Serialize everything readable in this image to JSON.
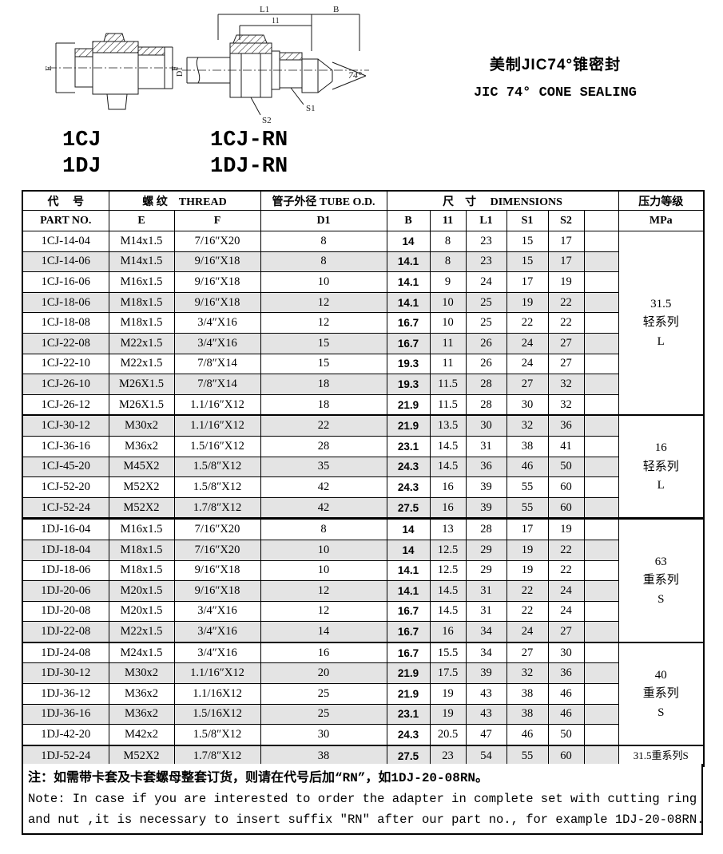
{
  "header": {
    "title_cn": "美制JIC74°锥密封",
    "title_en": "JIC 74° CONE SEALING",
    "models": {
      "m1": "1CJ",
      "m1rn": "1CJ-RN",
      "m2": "1DJ",
      "m2rn": "1DJ-RN"
    }
  },
  "drawings": {
    "left_labels": {
      "e": "E",
      "f": "F"
    },
    "right_labels": {
      "l1_cap": "L1",
      "b": "B",
      "l1_small": "11",
      "d1": "D1",
      "s2": "S2",
      "s1": "S1",
      "angle": "74°"
    }
  },
  "table": {
    "header_row1": {
      "part": "代　 号",
      "thread": "螺 纹　THREAD",
      "tube": "管子外径 TUBE O.D.",
      "dims": "尺　寸　 DIMENSIONS",
      "pressure": "压力等级"
    },
    "header_row2": {
      "part": "PART  NO.",
      "e": "E",
      "f": "F",
      "d1": "D1",
      "b": "B",
      "l1s": "11",
      "l1": "L1",
      "s1": "S1",
      "s2": "S2",
      "empty": "",
      "mpa": "MPa"
    },
    "rows": [
      [
        "1CJ-14-04",
        "M14x1.5",
        "7/16″X20",
        "8",
        "14",
        "8",
        "23",
        "15",
        "17"
      ],
      [
        "1CJ-14-06",
        "M14x1.5",
        "9/16″X18",
        "8",
        "14.1",
        "8",
        "23",
        "15",
        "17"
      ],
      [
        "1CJ-16-06",
        "M16x1.5",
        "9/16″X18",
        "10",
        "14.1",
        "9",
        "24",
        "17",
        "19"
      ],
      [
        "1CJ-18-06",
        "M18x1.5",
        "9/16″X18",
        "12",
        "14.1",
        "10",
        "25",
        "19",
        "22"
      ],
      [
        "1CJ-18-08",
        "M18x1.5",
        "3/4″X16",
        "12",
        "16.7",
        "10",
        "25",
        "22",
        "22"
      ],
      [
        "1CJ-22-08",
        "M22x1.5",
        "3/4″X16",
        "15",
        "16.7",
        "11",
        "26",
        "24",
        "27"
      ],
      [
        "1CJ-22-10",
        "M22x1.5",
        "7/8″X14",
        "15",
        "19.3",
        "11",
        "26",
        "24",
        "27"
      ],
      [
        "1CJ-26-10",
        "M26X1.5",
        "7/8″X14",
        "18",
        "19.3",
        "11.5",
        "28",
        "27",
        "32"
      ],
      [
        "1CJ-26-12",
        "M26X1.5",
        "1.1/16″X12",
        "18",
        "21.9",
        "11.5",
        "28",
        "30",
        "32"
      ],
      [
        "1CJ-30-12",
        "M30x2",
        "1.1/16″X12",
        "22",
        "21.9",
        "13.5",
        "30",
        "32",
        "36"
      ],
      [
        "1CJ-36-16",
        "M36x2",
        "1.5/16″X12",
        "28",
        "23.1",
        "14.5",
        "31",
        "38",
        "41"
      ],
      [
        "1CJ-45-20",
        "M45X2",
        "1.5/8″X12",
        "35",
        "24.3",
        "14.5",
        "36",
        "46",
        "50"
      ],
      [
        "1CJ-52-20",
        "M52X2",
        "1.5/8″X12",
        "42",
        "24.3",
        "16",
        "39",
        "55",
        "60"
      ],
      [
        "1CJ-52-24",
        "M52X2",
        "1.7/8″X12",
        "42",
        "27.5",
        "16",
        "39",
        "55",
        "60"
      ],
      [
        "1DJ-16-04",
        "M16x1.5",
        "7/16″X20",
        "8",
        "14",
        "13",
        "28",
        "17",
        "19"
      ],
      [
        "1DJ-18-04",
        "M18x1.5",
        "7/16″X20",
        "10",
        "14",
        "12.5",
        "29",
        "19",
        "22"
      ],
      [
        "1DJ-18-06",
        "M18x1.5",
        "9/16″X18",
        "10",
        "14.1",
        "12.5",
        "29",
        "19",
        "22"
      ],
      [
        "1DJ-20-06",
        "M20x1.5",
        "9/16″X18",
        "12",
        "14.1",
        "14.5",
        "31",
        "22",
        "24"
      ],
      [
        "1DJ-20-08",
        "M20x1.5",
        "3/4″X16",
        "12",
        "16.7",
        "14.5",
        "31",
        "22",
        "24"
      ],
      [
        "1DJ-22-08",
        "M22x1.5",
        "3/4″X16",
        "14",
        "16.7",
        "16",
        "34",
        "24",
        "27"
      ],
      [
        "1DJ-24-08",
        "M24x1.5",
        "3/4″X16",
        "16",
        "16.7",
        "15.5",
        "34",
        "27",
        "30"
      ],
      [
        "1DJ-30-12",
        "M30x2",
        "1.1/16″X12",
        "20",
        "21.9",
        "17.5",
        "39",
        "32",
        "36"
      ],
      [
        "1DJ-36-12",
        "M36x2",
        "1.1/16X12",
        "25",
        "21.9",
        "19",
        "43",
        "38",
        "46"
      ],
      [
        "1DJ-36-16",
        "M36x2",
        "1.5/16X12",
        "25",
        "23.1",
        "19",
        "43",
        "38",
        "46"
      ],
      [
        "1DJ-42-20",
        "M42x2",
        "1.5/8″X12",
        "30",
        "24.3",
        "20.5",
        "47",
        "46",
        "50"
      ],
      [
        "1DJ-52-24",
        "M52X2",
        "1.7/8″X12",
        "38",
        "27.5",
        "23",
        "54",
        "55",
        "60"
      ]
    ],
    "pressure_groups": [
      {
        "start": 1,
        "span": 9,
        "lines": [
          "31.5",
          "轻系列",
          "L"
        ]
      },
      {
        "start": 10,
        "span": 5,
        "lines": [
          "16",
          "轻系列",
          "L"
        ]
      },
      {
        "start": 15,
        "span": 6,
        "lines": [
          "63",
          "重系列",
          "S"
        ]
      },
      {
        "start": 21,
        "span": 5,
        "lines": [
          "40",
          "重系列",
          "S"
        ]
      },
      {
        "start": 26,
        "span": 1,
        "lines": [
          "31.5重系列S"
        ]
      }
    ],
    "group_break_rows": [
      10,
      15,
      21,
      26
    ],
    "series_break_row": 15
  },
  "notes": {
    "cn": "注：如需带卡套及卡套螺母整套订货，则请在代号后加“RN”，如1DJ-20-08RN。",
    "en1": "Note: In case if you are interested to order the adapter in complete set with cutting ring",
    "en2": " and nut ,it is necessary to insert suffix ″RN″ after our part no., for example 1DJ-20-08RN."
  }
}
